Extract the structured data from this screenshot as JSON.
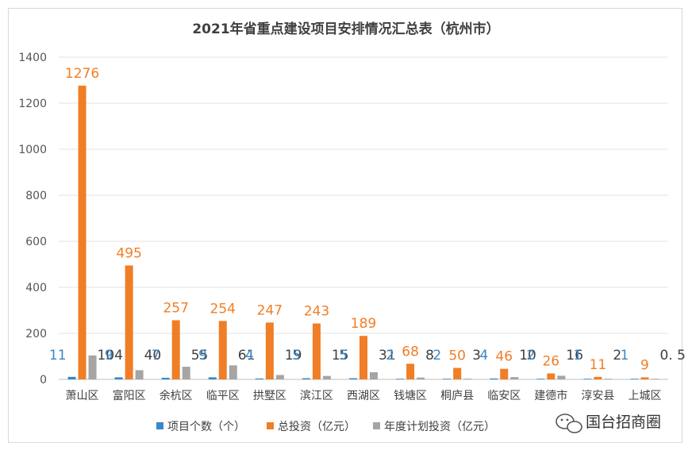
{
  "chart_data": {
    "type": "bar",
    "title": "2021年省重点建设项目安排情况汇总表（杭州市）",
    "categories": [
      "萧山区",
      "富阳区",
      "余杭区",
      "临平区",
      "拱墅区",
      "滨江区",
      "西湖区",
      "钱塘区",
      "桐庐县",
      "临安区",
      "建德市",
      "淳安县",
      "上城区"
    ],
    "series": [
      {
        "name": "项目个数（个）",
        "color": "#3a86c8",
        "values": [
          11,
          9,
          7,
          9,
          4,
          5,
          5,
          2,
          2,
          4,
          2,
          1,
          1
        ],
        "labels": [
          "11",
          "9",
          "7",
          "9",
          "4",
          "5",
          "5",
          "2",
          "2",
          "4",
          "2",
          "1",
          "1"
        ]
      },
      {
        "name": "总投资（亿元）",
        "color": "#f07e26",
        "values": [
          1276,
          495,
          257,
          254,
          247,
          243,
          189,
          68,
          50,
          46,
          26,
          11,
          9
        ],
        "labels": [
          "1276",
          "495",
          "257",
          "254",
          "247",
          "243",
          "189",
          "68",
          "50",
          "46",
          "26",
          "11",
          "9"
        ]
      },
      {
        "name": "年度计划投资（亿元）",
        "color": "#a5a5a5",
        "values": [
          104,
          40,
          55,
          61,
          19,
          15,
          31,
          8,
          3,
          10,
          16,
          2,
          0.5
        ],
        "labels": [
          "104",
          "40",
          "55",
          "61",
          "19",
          "15",
          "31",
          "8",
          "3",
          "10",
          "16",
          "2",
          "0. 5"
        ]
      }
    ],
    "ylim": [
      0,
      1400
    ],
    "yticks": [
      "0",
      "200",
      "400",
      "600",
      "800",
      "1000",
      "1200",
      "1400"
    ],
    "grid": true,
    "legend": "bottom"
  },
  "watermark": {
    "text": "国台招商圈",
    "icon": "wechat-icon"
  }
}
